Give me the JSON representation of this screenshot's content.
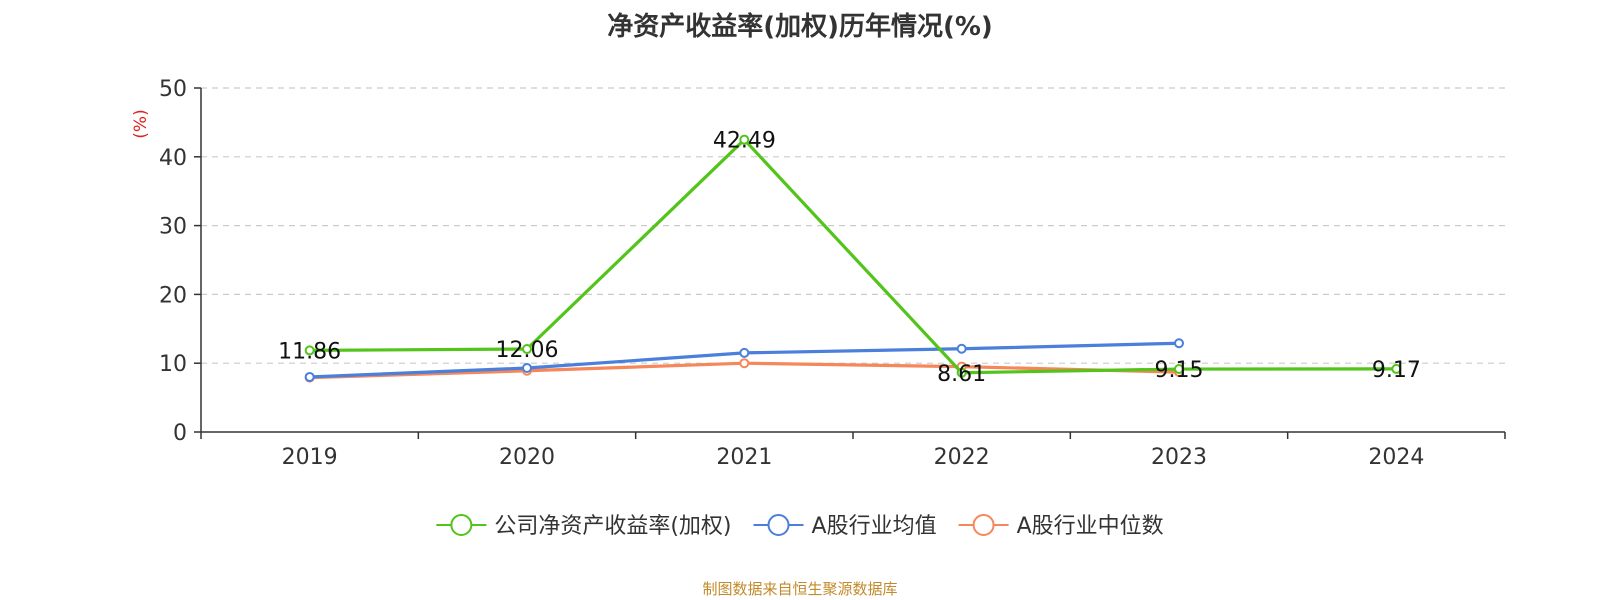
{
  "title": "净资产收益率(加权)历年情况(%)",
  "source": "制图数据来自恒生聚源数据库",
  "chart_data": {
    "type": "line",
    "title": "净资产收益率(加权)历年情况(%)",
    "ylabel": "(%)",
    "xlabel": "",
    "ylim": [
      0,
      50
    ],
    "yticks": [
      0,
      10,
      20,
      30,
      40,
      50
    ],
    "categories": [
      "2019",
      "2020",
      "2021",
      "2022",
      "2023",
      "2024"
    ],
    "grid": true,
    "legend_position": "bottom-center",
    "series": [
      {
        "name": "公司净资产收益率(加权)",
        "color": "#52c41a",
        "values": [
          11.86,
          12.06,
          42.49,
          8.61,
          9.15,
          9.17
        ],
        "show_labels": true
      },
      {
        "name": "A股行业均值",
        "color": "#4a7fdb",
        "values": [
          8.0,
          9.3,
          11.5,
          12.1,
          12.9,
          null
        ],
        "show_labels": false
      },
      {
        "name": "A股行业中位数",
        "color": "#f5875a",
        "values": [
          7.9,
          8.9,
          10.0,
          9.5,
          8.7,
          null
        ],
        "show_labels": false
      }
    ]
  }
}
